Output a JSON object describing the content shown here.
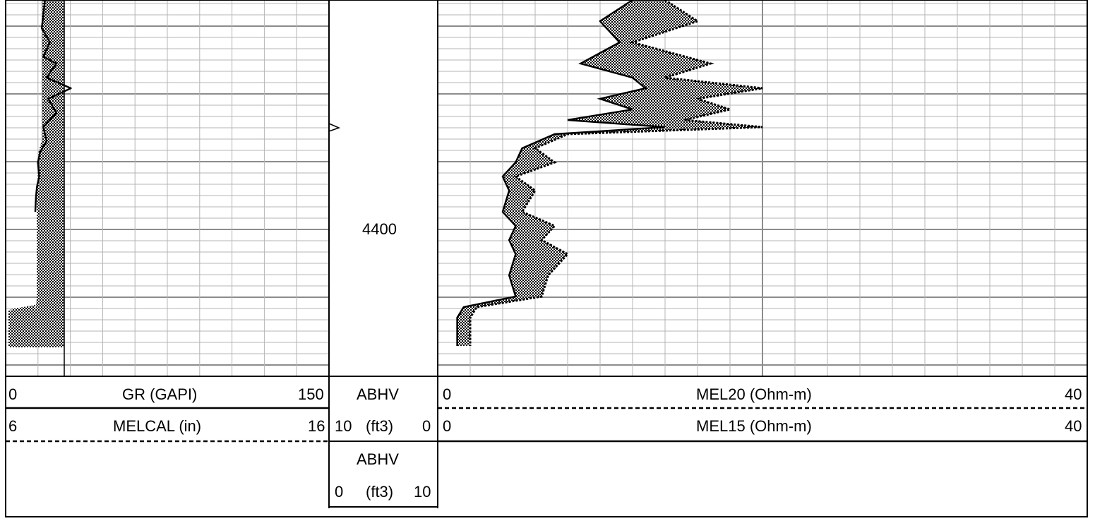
{
  "chart_data": {
    "type": "well-log",
    "depth_label": "4400",
    "tracks": [
      {
        "name": "track-1",
        "curves": [
          {
            "mnemonic": "GR",
            "unit": "(GAPI)",
            "label": "GR (GAPI)",
            "min": "0",
            "max": "150",
            "line": "solid"
          },
          {
            "mnemonic": "MELCAL",
            "unit": "(in)",
            "label": "MELCAL (in)",
            "min": "6",
            "max": "16",
            "line": "dashed"
          }
        ]
      },
      {
        "name": "depth-track",
        "curves": [
          {
            "mnemonic": "ABHV",
            "unit": "(ft3)",
            "min": "10",
            "max": "0",
            "line": "solid"
          },
          {
            "mnemonic": "ABHV",
            "unit": "(ft3)",
            "min": "0",
            "max": "10",
            "line": "solid"
          }
        ]
      },
      {
        "name": "resistivity-track",
        "curves": [
          {
            "mnemonic": "MEL20",
            "unit": "(Ohm-m)",
            "label": "MEL20 (Ohm-m)",
            "min": "0",
            "max": "40",
            "line": "dashed"
          },
          {
            "mnemonic": "MEL15",
            "unit": "(Ohm-m)",
            "label": "MEL15 (Ohm-m)",
            "min": "0",
            "max": "40",
            "line": "solid"
          }
        ]
      }
    ],
    "gr_curve": [
      [
        0,
        0.03
      ],
      [
        20,
        0.025
      ],
      [
        40,
        0.02
      ],
      [
        60,
        0.045
      ],
      [
        80,
        0.025
      ],
      [
        90,
        0.065
      ],
      [
        110,
        0.035
      ],
      [
        125,
        0.11
      ],
      [
        140,
        0.04
      ],
      [
        160,
        0.065
      ],
      [
        180,
        0.025
      ],
      [
        200,
        0.035
      ],
      [
        215,
        0.015
      ],
      [
        230,
        0.008
      ],
      [
        250,
        0.012
      ],
      [
        265,
        0.005
      ],
      [
        280,
        0.002
      ],
      [
        300,
        0.0
      ]
    ],
    "caliper_curve": [
      [
        0,
        0.02
      ],
      [
        200,
        0.02
      ],
      [
        215,
        0.01
      ],
      [
        240,
        0.008
      ],
      [
        300,
        0.005
      ],
      [
        420,
        0.005
      ],
      [
        430,
        0.003
      ],
      [
        440,
        0.0
      ]
    ],
    "mel20_curve": [
      [
        0,
        0.35
      ],
      [
        30,
        0.4
      ],
      [
        60,
        0.3
      ],
      [
        90,
        0.42
      ],
      [
        110,
        0.35
      ],
      [
        125,
        0.5
      ],
      [
        140,
        0.4
      ],
      [
        155,
        0.45
      ],
      [
        170,
        0.38
      ],
      [
        180,
        0.5
      ],
      [
        190,
        0.2
      ],
      [
        210,
        0.15
      ],
      [
        230,
        0.18
      ],
      [
        250,
        0.12
      ],
      [
        270,
        0.15
      ],
      [
        300,
        0.13
      ],
      [
        320,
        0.18
      ],
      [
        340,
        0.16
      ],
      [
        360,
        0.2
      ],
      [
        390,
        0.17
      ],
      [
        420,
        0.16
      ],
      [
        435,
        0.06
      ],
      [
        450,
        0.05
      ],
      [
        490,
        0.05
      ]
    ],
    "mel15_curve": [
      [
        0,
        0.3
      ],
      [
        30,
        0.25
      ],
      [
        60,
        0.28
      ],
      [
        90,
        0.22
      ],
      [
        110,
        0.3
      ],
      [
        125,
        0.32
      ],
      [
        140,
        0.25
      ],
      [
        155,
        0.3
      ],
      [
        170,
        0.2
      ],
      [
        180,
        0.35
      ],
      [
        190,
        0.18
      ],
      [
        210,
        0.13
      ],
      [
        230,
        0.12
      ],
      [
        250,
        0.1
      ],
      [
        270,
        0.11
      ],
      [
        300,
        0.1
      ],
      [
        320,
        0.12
      ],
      [
        340,
        0.11
      ],
      [
        360,
        0.12
      ],
      [
        390,
        0.11
      ],
      [
        420,
        0.12
      ],
      [
        435,
        0.04
      ],
      [
        450,
        0.03
      ],
      [
        490,
        0.03
      ]
    ]
  }
}
